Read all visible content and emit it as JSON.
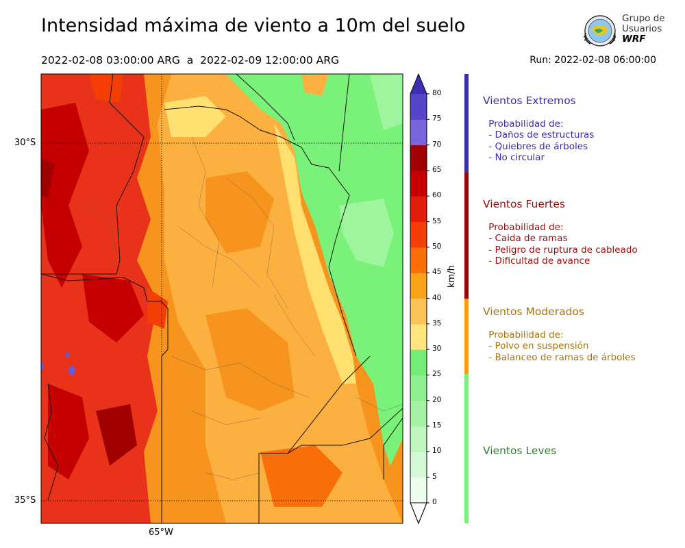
{
  "header": {
    "title": "Intensidad máxima de viento a 10m del suelo",
    "period": "2022-02-08 03:00:00 ARG  a  2022-02-09 12:00:00 ARG",
    "run": "Run: 2022-02-08 06:00:00"
  },
  "logo": {
    "line1": "Grupo de",
    "line2": "Usuarios",
    "line3": "WRF"
  },
  "map": {
    "lat_labels": [
      "30°S",
      "35°S"
    ],
    "lon_labels": [
      "65°W"
    ],
    "graticule": "dotted",
    "field_colors": {
      "extreme": "#6a5acd",
      "dark_red": "#b30000",
      "red": "#e8321a",
      "red_orange": "#f4520f",
      "orange": "#f7941d",
      "light_orange": "#fbb040",
      "yellow": "#ffe070",
      "green": "#7af27a",
      "light_green": "#9ef59e",
      "pale_green": "#c8f7c8"
    }
  },
  "colorbar": {
    "unit": "km/h",
    "ticks": [
      "0",
      "5",
      "10",
      "15",
      "20",
      "25",
      "30",
      "35",
      "40",
      "45",
      "50",
      "55",
      "60",
      "65",
      "70",
      "75",
      "80"
    ],
    "colors": [
      "#ecfdeb",
      "#d5f9d4",
      "#bef6bd",
      "#a6f2a5",
      "#8eef8e",
      "#76ec76",
      "#ffe57e",
      "#fcc456",
      "#f9a21a",
      "#f86f0a",
      "#f43e05",
      "#e21d0b",
      "#c60000",
      "#a00000",
      "#7766dd",
      "#5545c8",
      "#3d2fb4"
    ],
    "extend_max_color": "#3322aa"
  },
  "legend": {
    "categories": [
      {
        "name": "Vientos Extremos",
        "color": "#3a2da8",
        "body": " Probabilidad de:\n - Daños de estructuras\n - Quiebres de árboles\n - No circular"
      },
      {
        "name": "Vientos Fuertes",
        "color": "#9c0b0b",
        "body": " Probabilidad de:\n - Caida de ramas\n - Peligro de ruptura de cableado\n - Dificultad de avance"
      },
      {
        "name": "Vientos Moderados",
        "color": "#a8720d",
        "body": " Probabilidad de:\n - Polvo en suspensión\n - Balanceo de ramas de árboles"
      },
      {
        "name": "Vientos Leves",
        "color": "#2f7f2f",
        "body": ""
      }
    ],
    "bar_colors": [
      "#3a2da8",
      "#9c0000",
      "#ff9a00",
      "#7af27a"
    ]
  }
}
